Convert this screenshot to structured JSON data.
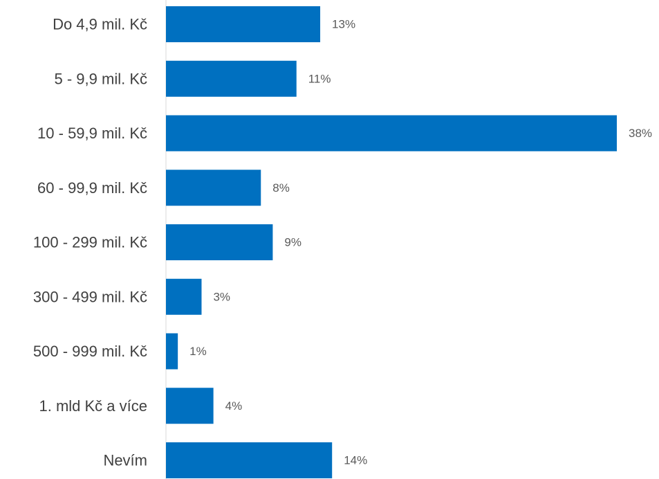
{
  "chart_data": {
    "type": "bar",
    "orientation": "horizontal",
    "categories": [
      "Do 4,9 mil. Kč",
      "5 - 9,9 mil. Kč",
      "10 - 59,9 mil. Kč",
      "60 - 99,9 mil. Kč",
      "100 - 299 mil. Kč",
      "300 - 499 mil. Kč",
      "500 - 999 mil. Kč",
      "1. mld Kč a více",
      "Nevím"
    ],
    "values": [
      13,
      11,
      38,
      8,
      9,
      3,
      1,
      4,
      14
    ],
    "value_labels": [
      "13%",
      "11%",
      "38%",
      "8%",
      "9%",
      "3%",
      "1%",
      "4%",
      "14%"
    ],
    "unit": "%",
    "title": "",
    "xlabel": "",
    "ylabel": "",
    "xlim": [
      0,
      38
    ],
    "grid": false,
    "legend": "none",
    "bar_color": "#0070C0",
    "axis_color": "#D9D9D9"
  }
}
